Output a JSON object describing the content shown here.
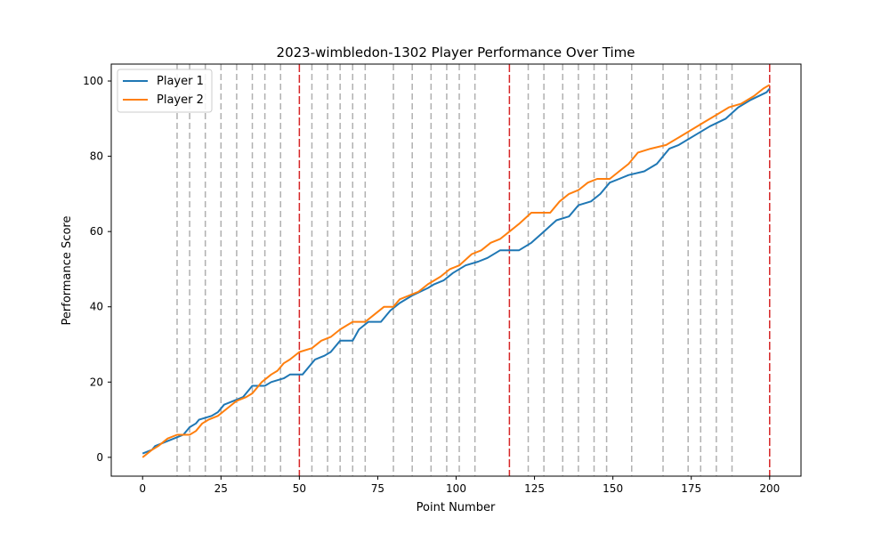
{
  "chart_data": {
    "type": "line",
    "title": "2023-wimbledon-1302 Player Performance Over Time",
    "xlabel": "Point Number",
    "ylabel": "Performance Score",
    "xlim": [
      -10,
      210
    ],
    "ylim": [
      -5,
      104.5
    ],
    "xticks": [
      0,
      25,
      50,
      75,
      100,
      125,
      150,
      175,
      200
    ],
    "yticks": [
      0,
      20,
      40,
      60,
      80,
      100
    ],
    "grid": false,
    "legend_position": "upper-left",
    "game_markers": [
      11,
      15,
      20,
      25,
      30,
      35,
      39,
      44,
      54,
      59,
      63,
      67,
      71,
      80,
      86,
      92,
      97,
      101,
      106,
      123,
      128,
      134,
      139,
      144,
      148,
      156,
      166,
      174,
      178,
      183,
      188
    ],
    "set_markers": [
      50,
      117,
      200
    ],
    "game_marker_color": "#b0b0b0",
    "set_marker_color": "#d62728",
    "series": [
      {
        "name": "Player 1",
        "color": "#1f77b4",
        "points": [
          [
            0,
            1
          ],
          [
            3,
            2
          ],
          [
            4,
            3
          ],
          [
            7,
            4
          ],
          [
            10,
            5
          ],
          [
            13,
            6
          ],
          [
            15,
            8
          ],
          [
            17,
            9
          ],
          [
            18,
            10
          ],
          [
            22,
            11
          ],
          [
            24,
            12
          ],
          [
            26,
            14
          ],
          [
            29,
            15
          ],
          [
            32,
            16
          ],
          [
            35,
            19
          ],
          [
            39,
            19
          ],
          [
            41,
            20
          ],
          [
            45,
            21
          ],
          [
            47,
            22
          ],
          [
            51,
            22
          ],
          [
            55,
            26
          ],
          [
            58,
            27
          ],
          [
            60,
            28
          ],
          [
            63,
            31
          ],
          [
            67,
            31
          ],
          [
            69,
            34
          ],
          [
            72,
            36
          ],
          [
            76,
            36
          ],
          [
            79,
            39
          ],
          [
            82,
            41
          ],
          [
            86,
            43
          ],
          [
            91,
            45
          ],
          [
            93,
            46
          ],
          [
            96,
            47
          ],
          [
            99,
            49
          ],
          [
            103,
            51
          ],
          [
            107,
            52
          ],
          [
            110,
            53
          ],
          [
            114,
            55
          ],
          [
            120,
            55
          ],
          [
            124,
            57
          ],
          [
            128,
            60
          ],
          [
            132,
            63
          ],
          [
            136,
            64
          ],
          [
            139,
            67
          ],
          [
            143,
            68
          ],
          [
            146,
            70
          ],
          [
            149,
            73
          ],
          [
            152,
            74
          ],
          [
            155,
            75
          ],
          [
            160,
            76
          ],
          [
            164,
            78
          ],
          [
            168,
            82
          ],
          [
            171,
            83
          ],
          [
            177,
            86
          ],
          [
            181,
            88
          ],
          [
            186,
            90
          ],
          [
            190,
            93
          ],
          [
            194,
            95
          ],
          [
            199,
            97
          ],
          [
            200,
            98
          ]
        ]
      },
      {
        "name": "Player 2",
        "color": "#ff7f0e",
        "points": [
          [
            0,
            0
          ],
          [
            3,
            2
          ],
          [
            5,
            3
          ],
          [
            8,
            5
          ],
          [
            11,
            6
          ],
          [
            15,
            6
          ],
          [
            17,
            7
          ],
          [
            19,
            9
          ],
          [
            21,
            10
          ],
          [
            24,
            11
          ],
          [
            27,
            13
          ],
          [
            30,
            15
          ],
          [
            33,
            16
          ],
          [
            35,
            17
          ],
          [
            38,
            20
          ],
          [
            41,
            22
          ],
          [
            43,
            23
          ],
          [
            45,
            25
          ],
          [
            47,
            26
          ],
          [
            50,
            28
          ],
          [
            54,
            29
          ],
          [
            57,
            31
          ],
          [
            60,
            32
          ],
          [
            63,
            34
          ],
          [
            65,
            35
          ],
          [
            67,
            36
          ],
          [
            71,
            36
          ],
          [
            74,
            38
          ],
          [
            77,
            40
          ],
          [
            80,
            40
          ],
          [
            82,
            42
          ],
          [
            85,
            43
          ],
          [
            88,
            44
          ],
          [
            91,
            46
          ],
          [
            95,
            48
          ],
          [
            98,
            50
          ],
          [
            101,
            51
          ],
          [
            105,
            54
          ],
          [
            108,
            55
          ],
          [
            111,
            57
          ],
          [
            114,
            58
          ],
          [
            117,
            60
          ],
          [
            120,
            62
          ],
          [
            124,
            65
          ],
          [
            130,
            65
          ],
          [
            133,
            68
          ],
          [
            136,
            70
          ],
          [
            139,
            71
          ],
          [
            142,
            73
          ],
          [
            145,
            74
          ],
          [
            149,
            74
          ],
          [
            152,
            76
          ],
          [
            155,
            78
          ],
          [
            158,
            81
          ],
          [
            162,
            82
          ],
          [
            167,
            83
          ],
          [
            171,
            85
          ],
          [
            175,
            87
          ],
          [
            179,
            89
          ],
          [
            183,
            91
          ],
          [
            187,
            93
          ],
          [
            191,
            94
          ],
          [
            195,
            96
          ],
          [
            198,
            98
          ],
          [
            200,
            99
          ]
        ]
      }
    ]
  }
}
